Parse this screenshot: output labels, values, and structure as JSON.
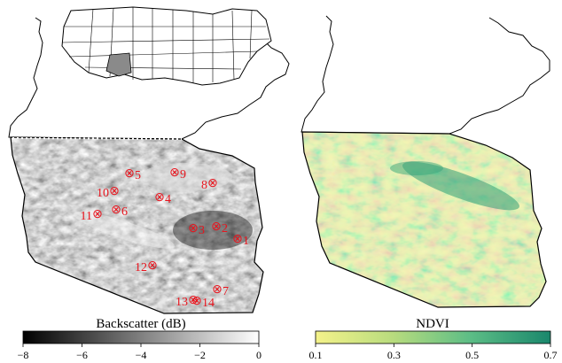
{
  "panels": [
    {
      "name": "backscatter-map",
      "colorbar": {
        "title": "Backscatter (dB)",
        "ticks": [
          "−8",
          "−6",
          "−4",
          "−2",
          "0"
        ],
        "colors": [
          "#000000",
          "#ffffff"
        ]
      }
    },
    {
      "name": "ndvi-map",
      "colorbar": {
        "title": "NDVI",
        "ticks": [
          "0.1",
          "0.3",
          "0.5",
          "0.7"
        ],
        "colors": [
          "#f2f18a",
          "#b9dc7e",
          "#5fbf85",
          "#1c8b6e"
        ]
      }
    }
  ],
  "inset": {
    "description_icon": "usa-inset-map",
    "highlighted_state_color": "#8a8a8a"
  },
  "sites": [
    {
      "label": "1",
      "sym": "⊗"
    },
    {
      "label": "2",
      "sym": "⊗"
    },
    {
      "label": "3",
      "sym": "⊗"
    },
    {
      "label": "4",
      "sym": "⊗"
    },
    {
      "label": "5",
      "sym": "⊗"
    },
    {
      "label": "6",
      "sym": "⊗"
    },
    {
      "label": "7",
      "sym": "⊗"
    },
    {
      "label": "8",
      "sym": "⊗"
    },
    {
      "label": "9",
      "sym": "⊗"
    },
    {
      "label": "10",
      "sym": "⊗"
    },
    {
      "label": "11",
      "sym": "⊗"
    },
    {
      "label": "12",
      "sym": "⊗"
    },
    {
      "label": "13",
      "sym": "⊗"
    },
    {
      "label": "14",
      "sym": "⊗"
    }
  ],
  "colors": {
    "site_marker": "#e8141d",
    "outline": "#000000"
  }
}
